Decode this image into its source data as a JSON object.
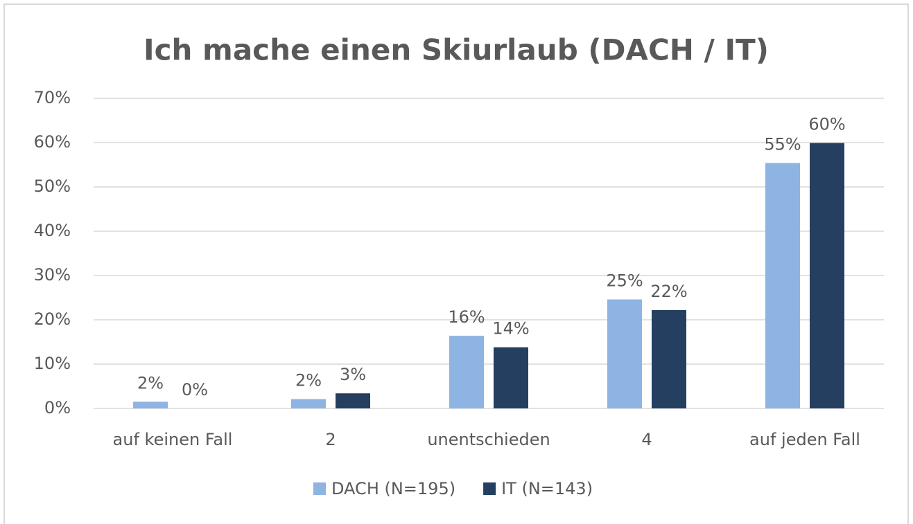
{
  "chart_data": {
    "type": "bar",
    "title": "Ich mache einen Skiurlaub (DACH / IT)",
    "categories": [
      "auf keinen Fall",
      "2",
      "unentschieden",
      "4",
      "auf jeden Fall"
    ],
    "series": [
      {
        "name": "DACH (N=195)",
        "color": "#8eb4e3",
        "values": [
          1.5,
          2.1,
          16.4,
          24.6,
          55.4
        ],
        "value_labels": [
          "2%",
          "2%",
          "16%",
          "25%",
          "55%"
        ]
      },
      {
        "name": "IT (N=143)",
        "color": "#243f60",
        "values": [
          0.0,
          3.4,
          13.8,
          22.2,
          59.9
        ],
        "value_labels": [
          "0%",
          "3%",
          "14%",
          "22%",
          "60%"
        ]
      }
    ],
    "ylim": [
      0,
      70
    ],
    "yticks": [
      {
        "value": 0,
        "label": "0%"
      },
      {
        "value": 10,
        "label": "10%"
      },
      {
        "value": 20,
        "label": "20%"
      },
      {
        "value": 30,
        "label": "30%"
      },
      {
        "value": 40,
        "label": "40%"
      },
      {
        "value": 50,
        "label": "50%"
      },
      {
        "value": 60,
        "label": "60%"
      },
      {
        "value": 70,
        "label": "70%"
      }
    ],
    "grid": true,
    "legend": "bottom"
  }
}
